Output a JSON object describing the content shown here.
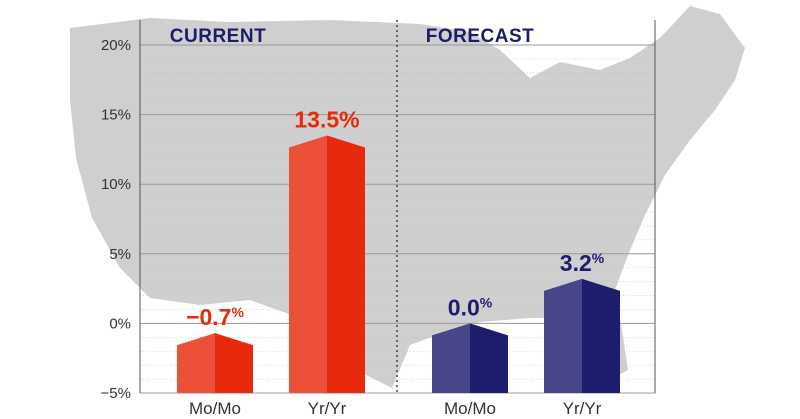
{
  "chart_data": {
    "type": "bar",
    "y_ticks": [
      "−5%",
      "0%",
      "5%",
      "10%",
      "15%",
      "20%"
    ],
    "ylim": [
      -5,
      20
    ],
    "grid": true,
    "panels": [
      {
        "title": "CURRENT",
        "color": "#e8290b",
        "categories": [
          "Mo/Mo",
          "Yr/Yr"
        ],
        "values": [
          -0.7,
          13.5
        ],
        "labels": [
          {
            "number": "−0.7",
            "unit": "%"
          },
          {
            "number": "13.5%",
            "unit": ""
          }
        ]
      },
      {
        "title": "FORECAST",
        "color": "#1d1d6e",
        "categories": [
          "Mo/Mo",
          "Yr/Yr"
        ],
        "values": [
          0.0,
          3.2
        ],
        "labels": [
          {
            "number": "0.0",
            "unit": "%"
          },
          {
            "number": "3.2",
            "unit": "%"
          }
        ]
      }
    ]
  }
}
